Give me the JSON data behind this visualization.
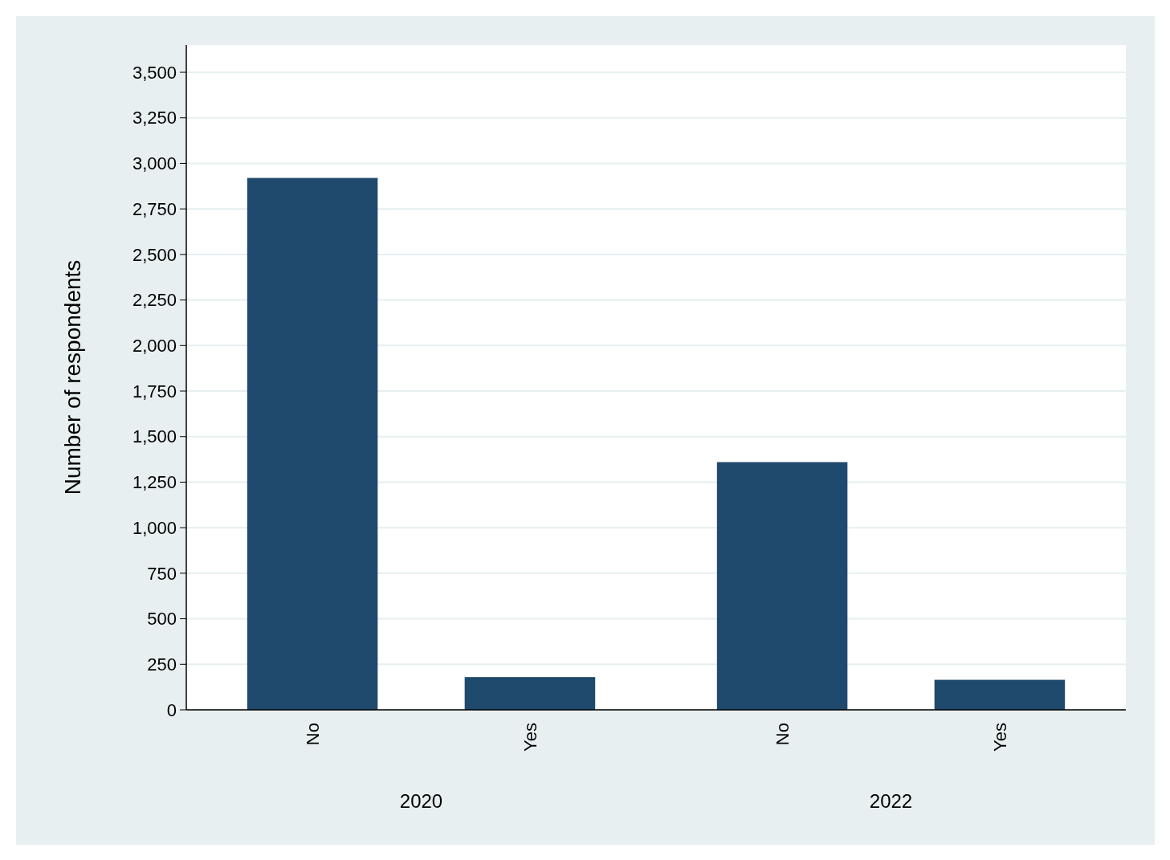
{
  "chart_data": [
    {
      "type": "bar",
      "categories": [
        "No",
        "Yes"
      ],
      "values": [
        2920,
        180
      ],
      "color": "#1f4a6e",
      "xlabel": "2020",
      "ylabel": "Number of respondents",
      "ylim": [
        0,
        3650
      ],
      "yticks": [
        0,
        250,
        500,
        750,
        {
          "value": 1000,
          "label": "1,000"
        },
        {
          "value": 1250,
          "label": "1,250"
        },
        {
          "value": 1500,
          "label": "1,500"
        },
        {
          "value": 1750,
          "label": "1,750"
        },
        {
          "value": 2000,
          "label": "2,000"
        },
        {
          "value": 2250,
          "label": "2,250"
        },
        {
          "value": 2500,
          "label": "2,500"
        },
        {
          "value": 2750,
          "label": "2,750"
        },
        {
          "value": 3000,
          "label": "3,000"
        },
        {
          "value": 3250,
          "label": "3,250"
        },
        {
          "value": 3500,
          "label": "3,500"
        }
      ],
      "grid": "y"
    },
    {
      "type": "bar",
      "categories": [
        "No",
        "Yes"
      ],
      "values": [
        1360,
        165
      ],
      "color": "#1f4a6e",
      "xlabel": "2022",
      "ylim": [
        0,
        3650
      ],
      "yticks": [
        {
          "value": 0,
          "label": null
        },
        {
          "value": 250,
          "label": null
        },
        {
          "value": 500,
          "label": null
        },
        {
          "value": 750,
          "label": null
        },
        {
          "value": 1000,
          "label": null
        },
        {
          "value": 1250,
          "label": null
        },
        {
          "value": 1500,
          "label": null
        },
        {
          "value": 1750,
          "label": null
        },
        {
          "value": 2000,
          "label": null
        },
        {
          "value": 2250,
          "label": null
        },
        {
          "value": 2500,
          "label": null
        },
        {
          "value": 2750,
          "label": null
        },
        {
          "value": 3000,
          "label": null
        },
        {
          "value": 3250,
          "label": null
        },
        {
          "value": 3500,
          "label": null
        }
      ],
      "grid": "y",
      "tick_labels": "x"
    }
  ]
}
